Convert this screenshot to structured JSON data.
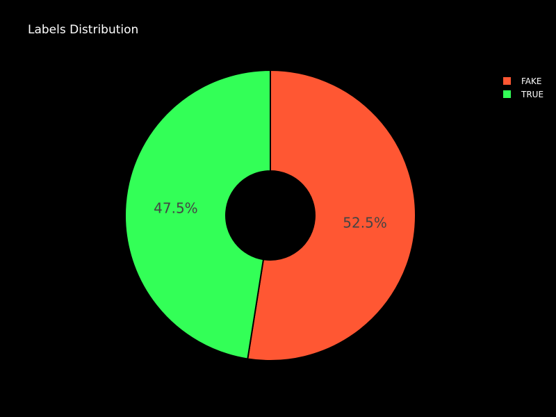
{
  "chart_data": {
    "type": "pie",
    "title": "Labels Distribution",
    "hole": true,
    "direction": "clockwise",
    "slices": [
      {
        "name": "FAKE",
        "value": 52.5,
        "label": "52.5%",
        "color": "#ff5733"
      },
      {
        "name": "TRUE",
        "value": 47.5,
        "label": "47.5%",
        "color": "#33ff57"
      }
    ],
    "legend_position": "top-right",
    "background": "#000000",
    "slice_label_color": "#444444",
    "slice_border_color": "#000000"
  }
}
